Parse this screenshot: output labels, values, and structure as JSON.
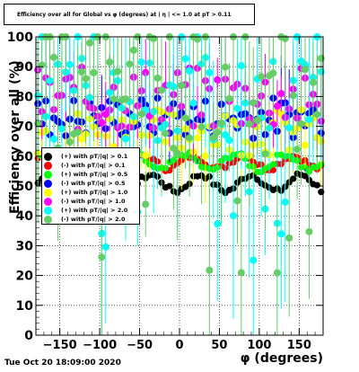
{
  "title": "Efficiency over all for Global vs φ (degrees) at | η | <= 1.0 at pT > 0.11",
  "timestamp": "Tue Oct 20 18:09:00 2020",
  "chart_data": {
    "type": "scatter",
    "title": "Efficiency over all for Global vs φ (degrees) at | η | <= 1.0 at pT > 0.11",
    "xlabel": "φ (degrees)",
    "ylabel": "Efficiency over all (%)",
    "xlim": [
      -180,
      180
    ],
    "ylim": [
      0,
      100
    ],
    "x_ticks": [
      -150,
      -100,
      -50,
      0,
      50,
      100,
      150
    ],
    "y_ticks": [
      0,
      10,
      20,
      30,
      40,
      50,
      60,
      70,
      80,
      90,
      100
    ],
    "grid": true,
    "legend_position": "left-middle",
    "series": [
      {
        "name": "(+) with pT/|q| > 0.1",
        "color": "#000000",
        "band": [
          47,
          55
        ],
        "spread": 0
      },
      {
        "name": "(-) with pT/|q| > 0.1",
        "color": "#ff0000",
        "band": [
          55,
          61
        ],
        "spread": 0
      },
      {
        "name": "(+) with pT/|q| > 0.5",
        "color": "#00ff00",
        "band": [
          54,
          62
        ],
        "spread": 0
      },
      {
        "name": "(-) with pT/|q| > 0.5",
        "color": "#0000ff",
        "band": [
          66,
          80
        ],
        "spread": 1
      },
      {
        "name": "(+) with pT/|q| > 1.0",
        "color": "#ffff00",
        "band": [
          60,
          76
        ],
        "spread": 1
      },
      {
        "name": "(-) with pT/|q| > 1.0",
        "color": "#ff00ff",
        "band": [
          68,
          90
        ],
        "spread": 1
      },
      {
        "name": "(+) with pT/|q| > 2.0",
        "color": "#00ffff",
        "band": [
          65,
          95
        ],
        "spread": 2
      },
      {
        "name": "(-) with pT/|q| > 2.0",
        "color": "#66cc66",
        "band": [
          60,
          100
        ],
        "spread": 2
      }
    ]
  }
}
